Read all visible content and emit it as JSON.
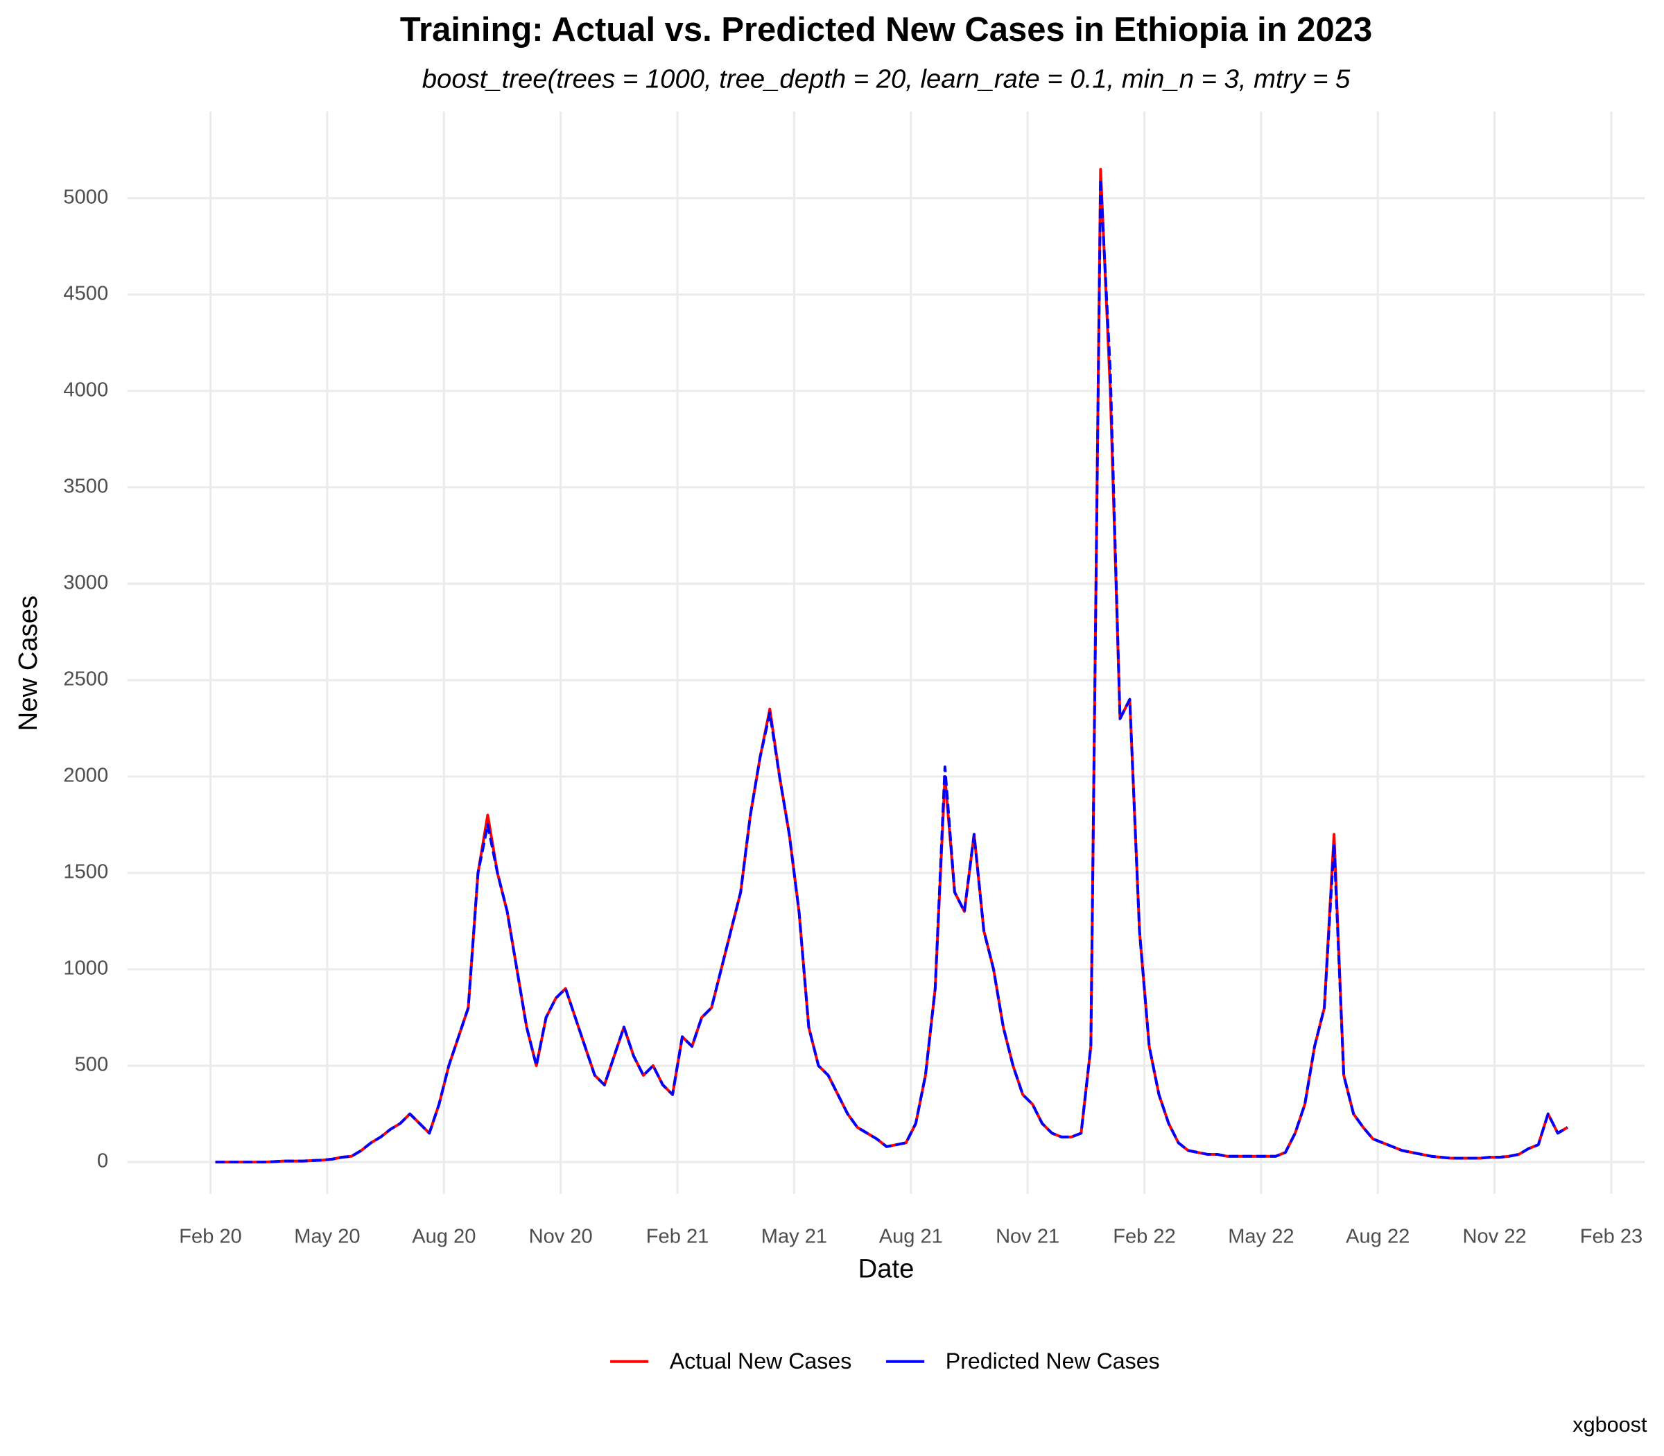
{
  "chart_data": {
    "type": "line",
    "title": "Training: Actual vs. Predicted New Cases in Ethiopia in 2023",
    "subtitle": "boost_tree(trees = 1000, tree_depth = 20, learn_rate = 0.1, min_n = 3, mtry = 5",
    "x_label": "Date",
    "y_label": "New Cases",
    "caption": "xgboost",
    "legend": "bottom",
    "grid": true,
    "x": [
      "2020-02",
      "2020-02",
      "2020-02",
      "2020-02",
      "2020-03",
      "2020-03",
      "2020-03",
      "2020-03",
      "2020-04",
      "2020-04",
      "2020-04",
      "2020-04",
      "2020-05",
      "2020-05",
      "2020-05",
      "2020-05",
      "2020-06",
      "2020-06",
      "2020-06",
      "2020-06",
      "2020-07",
      "2020-07",
      "2020-07",
      "2020-07",
      "2020-08",
      "2020-08",
      "2020-08",
      "2020-08",
      "2020-09",
      "2020-09",
      "2020-09",
      "2020-09",
      "2020-10",
      "2020-10",
      "2020-10",
      "2020-10",
      "2020-11",
      "2020-11",
      "2020-11",
      "2020-11",
      "2020-12",
      "2020-12",
      "2020-12",
      "2020-12",
      "2021-01",
      "2021-01",
      "2021-01",
      "2021-01",
      "2021-02",
      "2021-02",
      "2021-02",
      "2021-02",
      "2021-03",
      "2021-03",
      "2021-03",
      "2021-03",
      "2021-04",
      "2021-04",
      "2021-04",
      "2021-04",
      "2021-05",
      "2021-05",
      "2021-05",
      "2021-05",
      "2021-06",
      "2021-06",
      "2021-06",
      "2021-06",
      "2021-07",
      "2021-07",
      "2021-07",
      "2021-07",
      "2021-08",
      "2021-08",
      "2021-08",
      "2021-08",
      "2021-09",
      "2021-09",
      "2021-09",
      "2021-09",
      "2021-10",
      "2021-10",
      "2021-10",
      "2021-10",
      "2021-11",
      "2021-11",
      "2021-11",
      "2021-11",
      "2021-12",
      "2021-12",
      "2021-12",
      "2021-12",
      "2022-01",
      "2022-01",
      "2022-01",
      "2022-01",
      "2022-02",
      "2022-02",
      "2022-02",
      "2022-02",
      "2022-03",
      "2022-03",
      "2022-03",
      "2022-03",
      "2022-04",
      "2022-04",
      "2022-04",
      "2022-04",
      "2022-05",
      "2022-05",
      "2022-05",
      "2022-05",
      "2022-06",
      "2022-06",
      "2022-06",
      "2022-06",
      "2022-07",
      "2022-07",
      "2022-07",
      "2022-07",
      "2022-08",
      "2022-08",
      "2022-08",
      "2022-08",
      "2022-09",
      "2022-09",
      "2022-09",
      "2022-09",
      "2022-10",
      "2022-10",
      "2022-10",
      "2022-10",
      "2022-11",
      "2022-11",
      "2022-11",
      "2022-11",
      "2022-12",
      "2022-12",
      "2022-12",
      "2022-12"
    ],
    "series": [
      {
        "name": "Actual New Cases",
        "color": "#ff0000",
        "values": [
          0,
          0,
          0,
          0,
          0,
          0,
          2,
          5,
          5,
          5,
          8,
          10,
          15,
          25,
          30,
          60,
          100,
          130,
          170,
          200,
          250,
          200,
          150,
          300,
          500,
          650,
          800,
          1500,
          1800,
          1500,
          1300,
          1000,
          700,
          500,
          750,
          850,
          900,
          750,
          600,
          450,
          400,
          550,
          700,
          550,
          450,
          500,
          400,
          350,
          650,
          600,
          750,
          800,
          1000,
          1200,
          1400,
          1800,
          2100,
          2350,
          2000,
          1700,
          1300,
          700,
          500,
          450,
          350,
          250,
          180,
          150,
          120,
          80,
          90,
          100,
          200,
          450,
          900,
          2000,
          1400,
          1300,
          1700,
          1200,
          1000,
          700,
          500,
          350,
          300,
          200,
          150,
          130,
          130,
          150,
          600,
          5150,
          4000,
          2300,
          2400,
          1200,
          600,
          350,
          200,
          100,
          60,
          50,
          40,
          40,
          30,
          30,
          30,
          30,
          30,
          30,
          50,
          150,
          300,
          600,
          800,
          1700,
          450,
          250,
          180,
          120,
          100,
          80,
          60,
          50,
          40,
          30,
          25,
          20,
          20,
          20,
          20,
          25,
          25,
          30,
          40,
          70,
          90,
          250,
          150,
          180
        ]
      },
      {
        "name": "Predicted New Cases",
        "color": "#0000ff",
        "values": [
          0,
          0,
          0,
          0,
          0,
          0,
          2,
          5,
          5,
          5,
          8,
          10,
          15,
          25,
          30,
          60,
          100,
          130,
          170,
          200,
          250,
          200,
          150,
          300,
          500,
          650,
          800,
          1500,
          1750,
          1500,
          1300,
          1000,
          700,
          500,
          750,
          850,
          900,
          750,
          600,
          450,
          400,
          550,
          700,
          550,
          450,
          500,
          400,
          350,
          650,
          600,
          750,
          800,
          1000,
          1200,
          1400,
          1800,
          2100,
          2330,
          2000,
          1700,
          1300,
          700,
          500,
          450,
          350,
          250,
          180,
          150,
          120,
          80,
          90,
          100,
          200,
          450,
          900,
          2050,
          1400,
          1300,
          1700,
          1200,
          1000,
          700,
          500,
          350,
          300,
          200,
          150,
          130,
          130,
          150,
          600,
          5100,
          4100,
          2300,
          2400,
          1200,
          600,
          350,
          200,
          100,
          60,
          50,
          40,
          40,
          30,
          30,
          30,
          30,
          30,
          30,
          50,
          150,
          300,
          600,
          800,
          1650,
          450,
          250,
          180,
          120,
          100,
          80,
          60,
          50,
          40,
          30,
          25,
          20,
          20,
          20,
          20,
          25,
          25,
          30,
          40,
          70,
          90,
          250,
          150,
          180
        ]
      }
    ],
    "xlim": [
      "2019-12",
      "2023-03"
    ],
    "xticks": [
      {
        "value": "2020-02",
        "label": "Feb 20"
      },
      {
        "value": "2020-05",
        "label": "May 20"
      },
      {
        "value": "2020-08",
        "label": "Aug 20"
      },
      {
        "value": "2020-11",
        "label": "Nov 20"
      },
      {
        "value": "2021-02",
        "label": "Feb 21"
      },
      {
        "value": "2021-05",
        "label": "May 21"
      },
      {
        "value": "2021-08",
        "label": "Aug 21"
      },
      {
        "value": "2021-11",
        "label": "Nov 21"
      },
      {
        "value": "2022-02",
        "label": "Feb 22"
      },
      {
        "value": "2022-05",
        "label": "May 22"
      },
      {
        "value": "2022-08",
        "label": "Aug 22"
      },
      {
        "value": "2022-11",
        "label": "Nov 22"
      },
      {
        "value": "2023-02",
        "label": "Feb 23"
      }
    ],
    "ylim": [
      -165,
      5450
    ],
    "yticks": [
      0,
      500,
      1000,
      1500,
      2000,
      2500,
      3000,
      3500,
      4000,
      4500,
      5000
    ]
  }
}
